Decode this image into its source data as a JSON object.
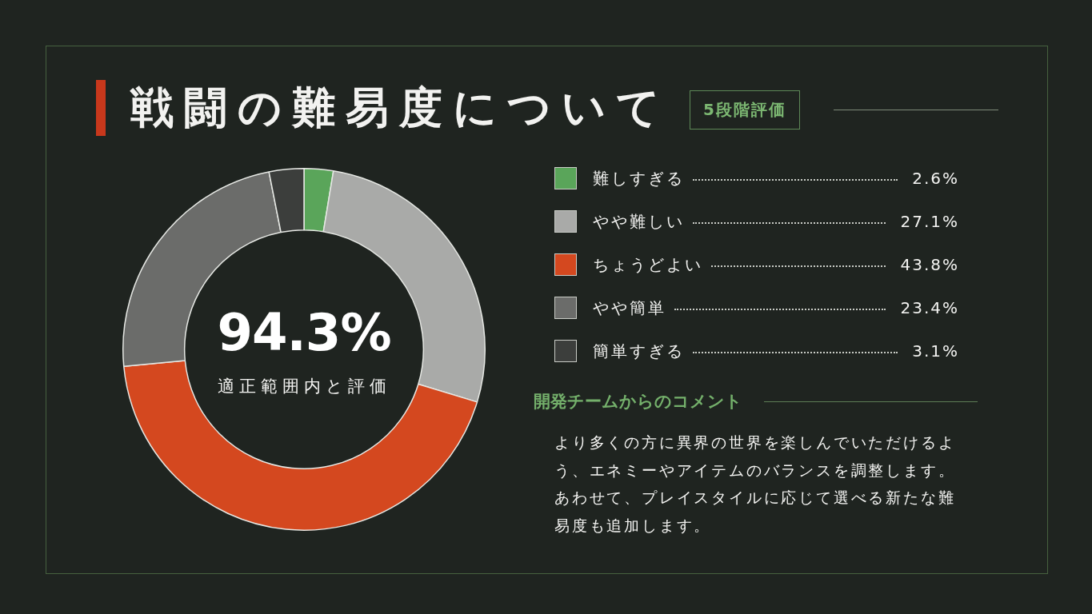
{
  "chart_data": {
    "type": "donut",
    "title": "戦闘の難易度について",
    "subtitle": "5段階評価",
    "categories": [
      "難しすぎる",
      "やや難しい",
      "ちょうどよい",
      "やや簡単",
      "簡単すぎる"
    ],
    "values": [
      2.6,
      27.1,
      43.8,
      23.4,
      3.1
    ],
    "colors": [
      "#5aa55a",
      "#a9aaa8",
      "#d4481f",
      "#6b6c6a",
      "#3c3e3c"
    ],
    "value_labels": [
      "2.6%",
      "27.1%",
      "43.8%",
      "23.4%",
      "3.1%"
    ],
    "legend": "right",
    "annotations": [
      "94.3%",
      "適正範囲内と評価",
      "開発チームからのコメント",
      "より多くの方に異界の世界を楽しんでいただけるよう、エネミーやアイテムのバランスを調整します。あわせて、プレイスタイルに応じて選べる新たな難易度も追加します。"
    ]
  }
}
